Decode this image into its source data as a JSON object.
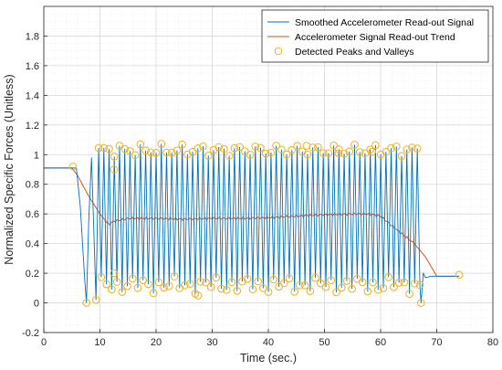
{
  "chart_data": {
    "type": "line",
    "title": "",
    "xlabel": "Time (sec.)",
    "ylabel": "Normalized Specific Forces (Unitless)",
    "xlim": [
      0,
      80
    ],
    "ylim": [
      -0.2,
      2.0
    ],
    "x_ticks": [
      0,
      10,
      20,
      30,
      40,
      50,
      60,
      70,
      80
    ],
    "x_tick_labels": [
      "0",
      "10",
      "20",
      "30",
      "40",
      "50",
      "60",
      "70",
      "80"
    ],
    "y_ticks": [
      -0.2,
      0,
      0.2,
      0.4,
      0.6,
      0.8,
      1,
      1.2,
      1.4,
      1.6,
      1.8
    ],
    "y_tick_labels": [
      "-0.2",
      "0",
      "0.2",
      "0.4",
      "0.6",
      "0.8",
      "1",
      "1.2",
      "1.4",
      "1.6",
      "1.8"
    ],
    "grid": true,
    "minor_grid": true,
    "legend_position": "top-right",
    "colors": {
      "signal": "#0072BD",
      "trend": "#D95319",
      "peaks": "#EDB120",
      "grid": "#d9d9d9",
      "axis": "#262626"
    },
    "series": [
      {
        "name": "Smoothed Accelerometer Read-out Signal",
        "kind": "oscillating",
        "initial_level": 0.91,
        "flat_until": 5.8,
        "oscillation_start": 8.0,
        "oscillation_end": 67.0,
        "cycles": 62,
        "peak_level": 1.03,
        "valley_level": 0.12,
        "final_level": 0.18,
        "end_x": 74
      },
      {
        "name": "Accelerometer Signal Read-out Trend",
        "kind": "line",
        "x": [
          0,
          5,
          6,
          8,
          10,
          11.5,
          12.5,
          15,
          20,
          25,
          30,
          35,
          40,
          45,
          50,
          55,
          58,
          60,
          62,
          64,
          66,
          68,
          70,
          72,
          74
        ],
        "y": [
          0.91,
          0.91,
          0.86,
          0.72,
          0.6,
          0.53,
          0.55,
          0.57,
          0.57,
          0.565,
          0.57,
          0.57,
          0.575,
          0.585,
          0.595,
          0.6,
          0.6,
          0.585,
          0.52,
          0.46,
          0.4,
          0.31,
          0.18,
          0.18,
          0.18
        ]
      },
      {
        "name": "Detected Peaks and Valleys",
        "kind": "markers",
        "points": [
          [
            5.2,
            0.92
          ],
          [
            7.6,
            0.0
          ],
          [
            9.3,
            0.02
          ],
          [
            74,
            0.19
          ],
          [
            12.5,
            0.9
          ],
          [
            12.5,
            0.2
          ],
          [
            27.5,
            0.05
          ],
          [
            46.8,
            1.06
          ],
          [
            52.5,
            1.01
          ],
          [
            58.5,
            1.02
          ],
          [
            67.2,
            0.0
          ]
        ]
      }
    ]
  }
}
